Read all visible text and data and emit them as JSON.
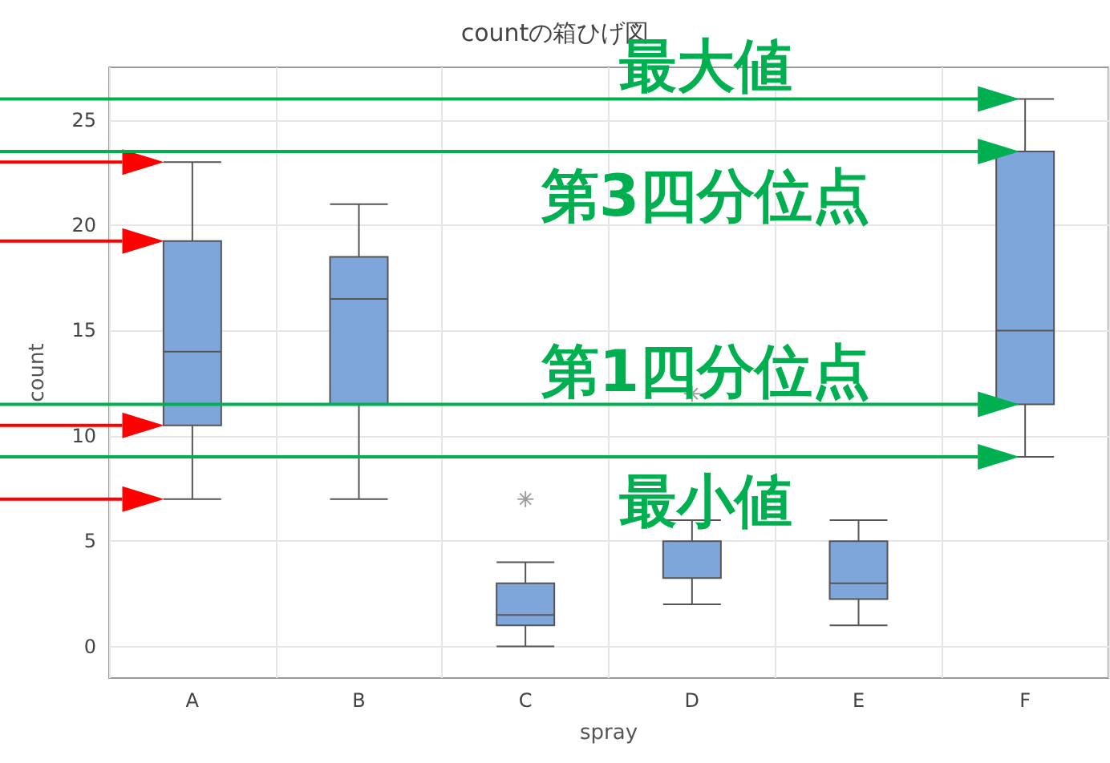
{
  "chart_data": {
    "type": "box",
    "title": "countの箱ひげ図",
    "xlabel": "spray",
    "ylabel": "count",
    "categories": [
      "A",
      "B",
      "C",
      "D",
      "E",
      "F"
    ],
    "boxes": [
      {
        "low": 7,
        "q1": 10.5,
        "median": 14,
        "q3": 19.25,
        "high": 23
      },
      {
        "low": 7,
        "q1": 11.5,
        "median": 16.5,
        "q3": 18.5,
        "high": 21
      },
      {
        "low": 0,
        "q1": 1,
        "median": 1.5,
        "q3": 3,
        "high": 4,
        "outliers": [
          7
        ]
      },
      {
        "low": 2,
        "q1": 3.25,
        "median": 5,
        "q3": 5,
        "high": 6,
        "outliers": [
          12
        ]
      },
      {
        "low": 1,
        "q1": 2.25,
        "median": 3,
        "q3": 5,
        "high": 6
      },
      {
        "low": 9,
        "q1": 11.5,
        "median": 15,
        "q3": 23.5,
        "high": 26
      }
    ],
    "color": "#7fa6da",
    "ylim": [
      -1.5,
      27.5
    ],
    "yticks": [
      0,
      5,
      10,
      15,
      20,
      25
    ],
    "grid": true,
    "marker": "cross",
    "ref_lines": [
      {
        "axis": "y",
        "value": 26,
        "label": "最大値",
        "color": "#00b050"
      },
      {
        "axis": "y",
        "value": 23.5,
        "label": "第3四分位点",
        "color": "#00b050"
      },
      {
        "axis": "y",
        "value": 11.5,
        "label": "第1四分位点",
        "color": "#00b050"
      },
      {
        "axis": "y",
        "value": 9,
        "label": "最小値",
        "color": "#00b050"
      }
    ]
  }
}
